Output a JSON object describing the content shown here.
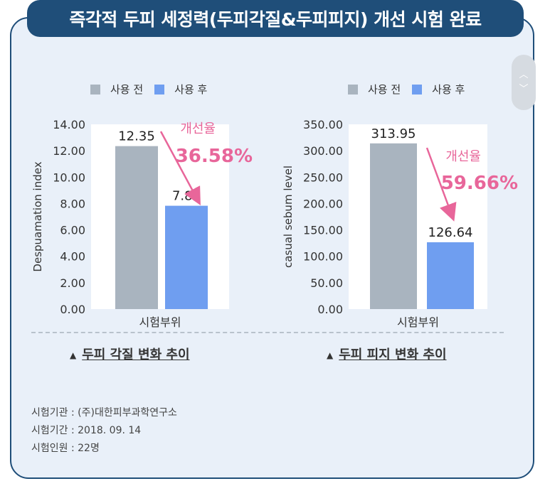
{
  "title": "즉각적 두피 세정력(두피각질&두피피지) 개선 시험 완료",
  "colors": {
    "before": "#a9b4bf",
    "after": "#6f9ef0",
    "highlight": "#e8669a",
    "banner": "#1f4e79"
  },
  "legend": {
    "before": "사용 전",
    "after": "사용 후"
  },
  "scroll_controls": {
    "up": "︿",
    "down": "﹀"
  },
  "chart_data": [
    {
      "type": "bar",
      "categories": [
        "시험부위"
      ],
      "series": [
        {
          "name": "사용 전",
          "values": [
            12.35
          ]
        },
        {
          "name": "사용 후",
          "values": [
            7.83
          ]
        }
      ],
      "ylabel": "Despuamation index",
      "xlabel": "시험부위",
      "ylim": [
        0,
        14
      ],
      "yticks": [
        "0.00",
        "2.00",
        "4.00",
        "6.00",
        "8.00",
        "10.00",
        "12.00",
        "14.00"
      ],
      "data_labels": [
        "12.35",
        "7.83"
      ],
      "improvement_label": "개선율",
      "improvement_value": "36.58%",
      "caption": "두피 각질 변화 추이"
    },
    {
      "type": "bar",
      "categories": [
        "시험부위"
      ],
      "series": [
        {
          "name": "사용 전",
          "values": [
            313.95
          ]
        },
        {
          "name": "사용 후",
          "values": [
            126.64
          ]
        }
      ],
      "ylabel": "casual sebum level",
      "xlabel": "시험부위",
      "ylim": [
        0,
        350
      ],
      "yticks": [
        "0.00",
        "50.00",
        "100.00",
        "150.00",
        "200.00",
        "250.00",
        "300.00",
        "350.00"
      ],
      "data_labels": [
        "313.95",
        "126.64"
      ],
      "improvement_label": "개선율",
      "improvement_value": "59.66%",
      "caption": "두피 피지 변화 추이"
    }
  ],
  "footer": {
    "institution": "시험기관 : (주)대한피부과학연구소",
    "period": "시험기간 : 2018. 09. 14",
    "participants": "시험인원 : 22명"
  }
}
